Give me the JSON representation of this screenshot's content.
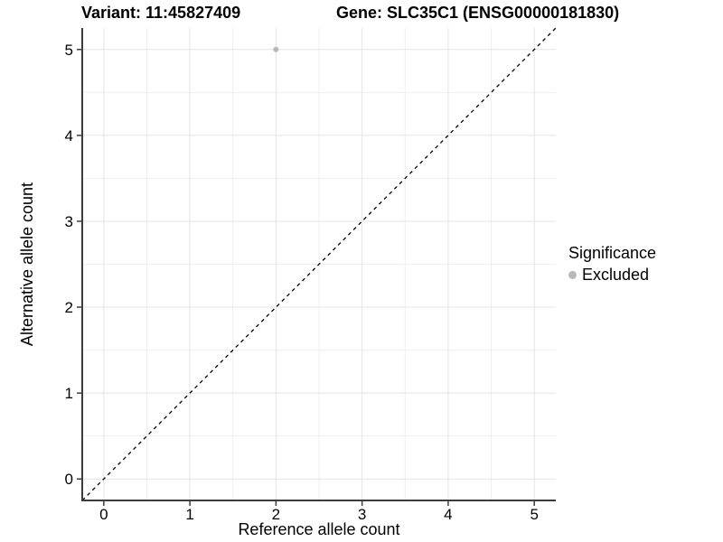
{
  "colors": {
    "background": "#ffffff",
    "grid_major": "#e4e4e4",
    "grid_minor": "#efefef",
    "axis_line": "#3c3c3c",
    "tick_mark": "#3c3c3c",
    "text": "#000000",
    "point": "#b8b8b8",
    "identity_line": "#000000"
  },
  "chart_data": {
    "type": "scatter",
    "titles": [
      "Variant: 11:45827409",
      "Gene: SLC35C1 (ENSG00000181830)"
    ],
    "xlabel": "Reference allele count",
    "ylabel": "Alternative allele count",
    "xlim": [
      -0.25,
      5.25
    ],
    "ylim": [
      -0.25,
      5.25
    ],
    "x_ticks": [
      0,
      1,
      2,
      3,
      4,
      5
    ],
    "y_ticks": [
      0,
      1,
      2,
      3,
      4,
      5
    ],
    "x_minor_gridlines": [
      0.5,
      1.5,
      2.5,
      3.5,
      4.5
    ],
    "y_minor_gridlines": [
      0.5,
      1.5,
      2.5,
      3.5,
      4.5
    ],
    "grid": "on",
    "legend_position": "right-center",
    "series": [
      {
        "name": "Excluded",
        "color": "#b8b8b8",
        "points": [
          {
            "x": 2,
            "y": 5
          }
        ]
      }
    ],
    "reference_line": {
      "kind": "identity y=x",
      "style": "dashed",
      "x1": -0.25,
      "y1": -0.25,
      "x2": 5.25,
      "y2": 5.25
    },
    "legend": {
      "title": "Significance",
      "items": [
        {
          "label": "Excluded",
          "color": "#b8b8b8"
        }
      ]
    }
  }
}
